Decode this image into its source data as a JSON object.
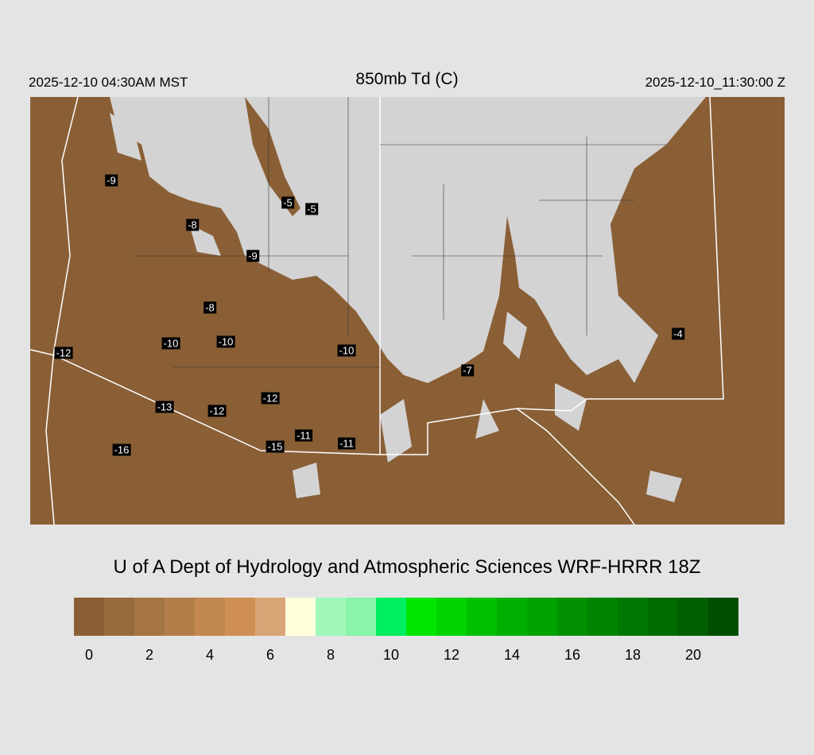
{
  "header": {
    "local_time": "2025-12-10 04:30AM MST",
    "title": "850mb Td (C)",
    "valid_time": "2025-12-10_11:30:00 Z"
  },
  "credit": "U of A Dept of Hydrology and Atmospheric Sciences WRF-HRRR 18Z",
  "colors": {
    "dry_fill": "#8a5f36",
    "background": "#d3d3d3"
  },
  "colorbar": {
    "colors": [
      "#8a5f36",
      "#976a3c",
      "#a57443",
      "#b27d48",
      "#c2884f",
      "#d08f55",
      "#d8a577",
      "#ffffdc",
      "#a0f8b8",
      "#88f5a8",
      "#00ef60",
      "#00e600",
      "#00d300",
      "#00c000",
      "#00b000",
      "#00a200",
      "#009000",
      "#008400",
      "#007700",
      "#006c00",
      "#005f00",
      "#004d00"
    ],
    "ticks": [
      "0",
      "2",
      "4",
      "6",
      "8",
      "10",
      "12",
      "14",
      "16",
      "18",
      "20"
    ]
  },
  "station_labels": [
    "-9",
    "-5",
    "-5",
    "-8",
    "-9",
    "-8",
    "-10",
    "-10",
    "-12",
    "-10",
    "-7",
    "-4",
    "-12",
    "-13",
    "-12",
    "-15",
    "-11",
    "-11",
    "-16"
  ]
}
